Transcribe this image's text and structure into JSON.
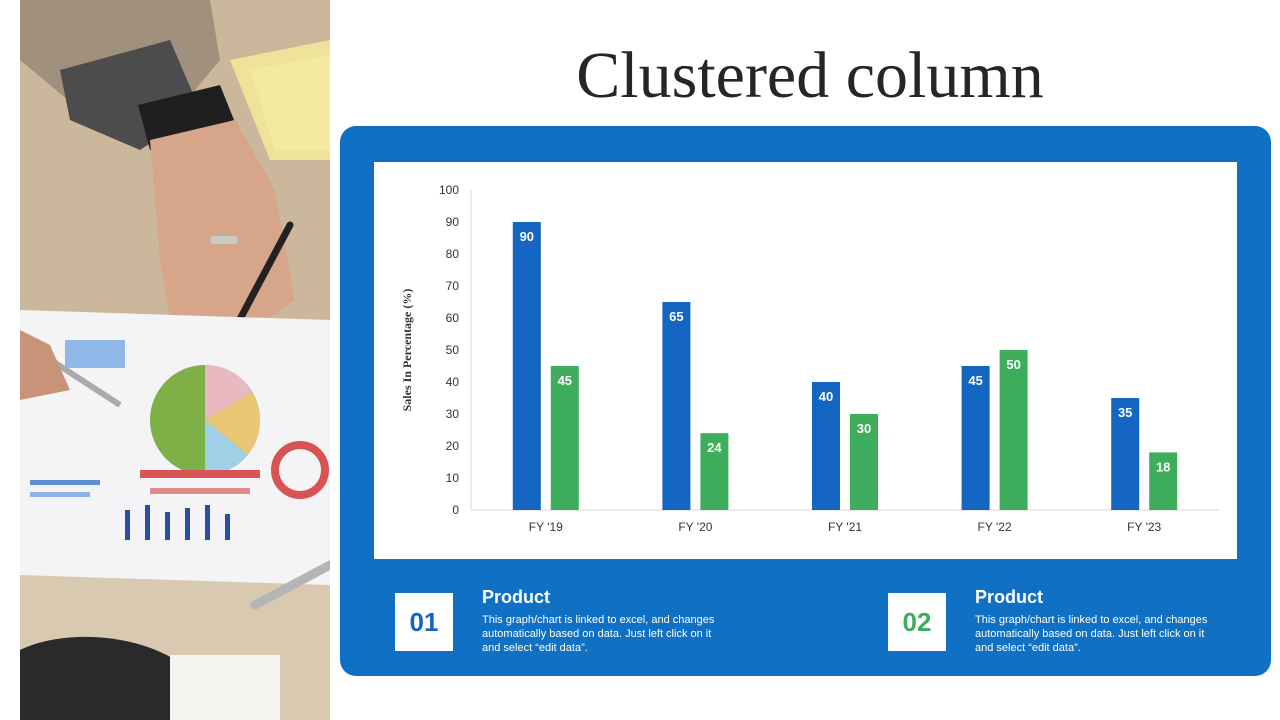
{
  "title": "Clustered column",
  "colors": {
    "panel": "#1070c4",
    "series_1": "#1466c2",
    "series_2": "#3fae5c",
    "axis_text": "#333333"
  },
  "chart_data": {
    "type": "bar",
    "categories": [
      "FY '19",
      "FY '20",
      "FY '21",
      "FY '22",
      "FY '23"
    ],
    "series": [
      {
        "values": [
          90,
          65,
          40,
          45,
          35
        ],
        "color": "#1466c2"
      },
      {
        "values": [
          45,
          24,
          30,
          50,
          18
        ],
        "color": "#3fae5c"
      }
    ],
    "ylabel": "Sales In Percentage (%)",
    "ylim": [
      0,
      100
    ],
    "yticks": [
      0,
      10,
      20,
      30,
      40,
      50,
      60,
      70,
      80,
      90,
      100
    ],
    "grid": false,
    "data_labels": true
  },
  "legend_cards": [
    {
      "number": "01",
      "title": "Product",
      "description": "This graph/chart is linked to excel, and changes automatically based on data. Just left click on it and select “edit data”.",
      "color": "#1466c2"
    },
    {
      "number": "02",
      "title": "Product",
      "description": "This graph/chart is linked to excel, and changes automatically based on data. Just left click on it and select “edit data”.",
      "color": "#3fae5c"
    }
  ]
}
